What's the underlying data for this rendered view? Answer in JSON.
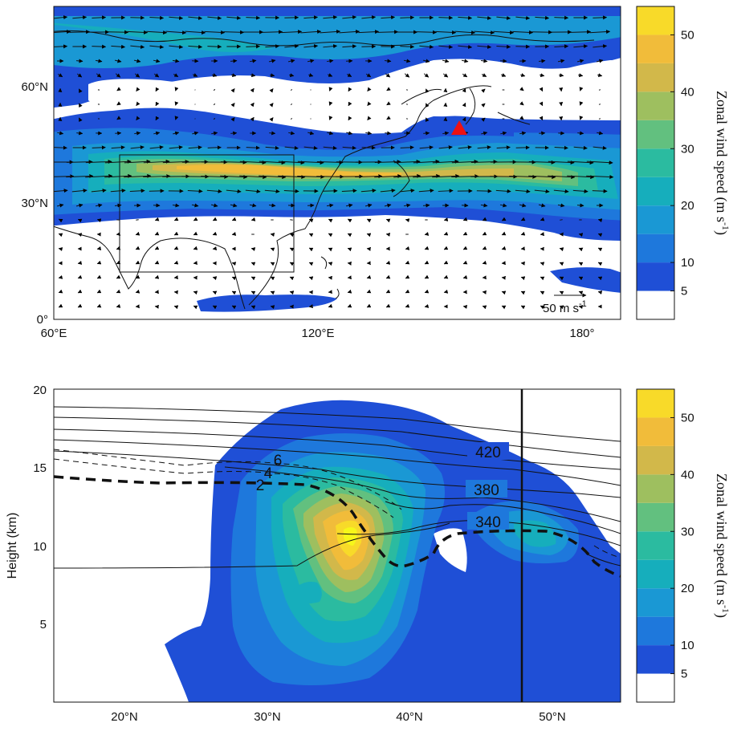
{
  "colorbar": {
    "levels": [
      0,
      5,
      10,
      15,
      20,
      25,
      30,
      35,
      40,
      45,
      50,
      55
    ],
    "colors": [
      "#ffffff",
      "#1f4fd6",
      "#1e78dc",
      "#1a98d4",
      "#16aebc",
      "#2bbba0",
      "#62c07f",
      "#9ebf5f",
      "#d2b84a",
      "#f1bc3a",
      "#f8da29",
      "#f6f71a"
    ],
    "tick_labels": [
      "5",
      "10",
      "20",
      "30",
      "40",
      "50"
    ],
    "label_text": "Zonal wind speed (m s",
    "label_sup": "-1",
    "label_close": ")"
  },
  "panel_top": {
    "x_ticks": [
      "60°E",
      "120°E",
      "180°"
    ],
    "y_ticks": [
      "0°",
      "30°N",
      "60°N"
    ],
    "ref_arrow_label": "50 m s",
    "ref_arrow_sup": "-1",
    "marker_color": "#ee1111"
  },
  "panel_bottom": {
    "x_ticks": [
      "20°N",
      "30°N",
      "40°N",
      "50°N"
    ],
    "y_ticks": [
      "5",
      "10",
      "15",
      "20"
    ],
    "ylabel": "Height (km)",
    "theta_labels": [
      "420",
      "380",
      "340"
    ],
    "pv_labels": [
      "2",
      "4",
      "6"
    ]
  },
  "chart_data": [
    {
      "type": "heatmap",
      "description_key": "map",
      "xlim": [
        60,
        185
      ],
      "ylim": [
        0,
        70
      ],
      "x_ticks": [
        60,
        120,
        180
      ],
      "y_ticks": [
        0,
        30,
        60
      ],
      "field": "zonal wind speed",
      "jet_core": {
        "lon_range": [
          80,
          115
        ],
        "lat": 38,
        "max": 45
      },
      "marker_triangle": {
        "lon": 152,
        "lat": 49
      },
      "box": {
        "lon": [
          75,
          115
        ],
        "lat": [
          10,
          42
        ]
      },
      "ref_vector": "50 m s-1"
    },
    {
      "type": "heatmap",
      "description_key": "cross_section",
      "xlim": [
        15,
        55
      ],
      "ylim": [
        0,
        20
      ],
      "x_ticks": [
        20,
        30,
        40,
        50
      ],
      "y_ticks": [
        5,
        10,
        15,
        20
      ],
      "field": "zonal wind speed",
      "jet_core": {
        "lat": 37,
        "height_km": 11,
        "max": 45
      },
      "vertical_line_lat": 48,
      "theta_contours": [
        340,
        380,
        420
      ],
      "pv_contours": [
        2,
        4,
        6
      ]
    }
  ]
}
